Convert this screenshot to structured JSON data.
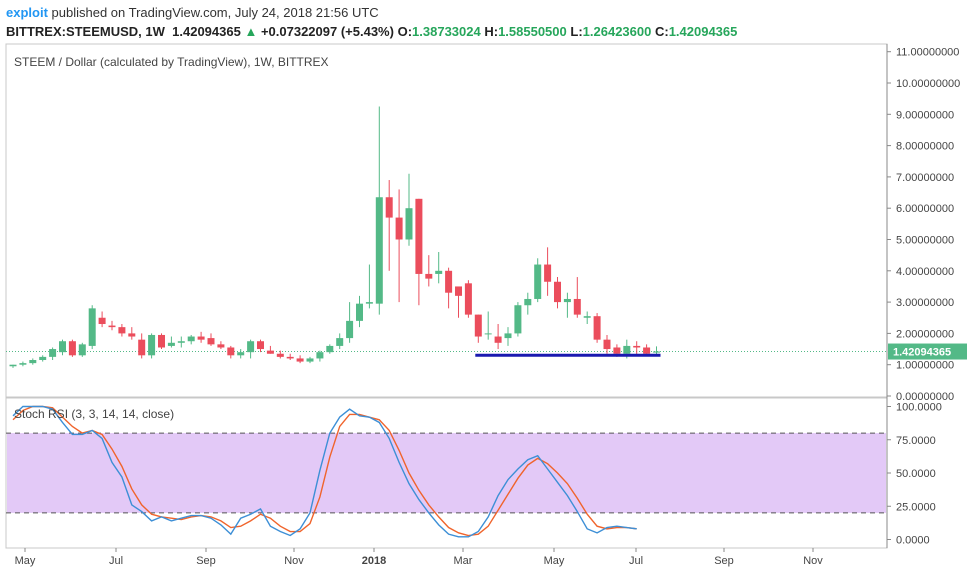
{
  "header": {
    "author": "exploit",
    "published_text": "published on TradingView.com, July 24, 2018 21:56 UTC",
    "symbol": "BITTREX:STEEMUSD, 1W",
    "last": "1.42094365",
    "change": "+0.07322097 (+5.43%)",
    "o_label": "O:",
    "o_value": "1.38733024",
    "h_label": "H:",
    "h_value": "1.58550500",
    "l_label": "L:",
    "l_value": "1.26423600",
    "c_label": "C:",
    "c_value": "1.42094365"
  },
  "colors": {
    "up": "#53b987",
    "down": "#eb4d5c",
    "k_line": "#3d8fd6",
    "d_line": "#f0642c",
    "band": "#e3c9f7",
    "support": "#1a1ab0",
    "price_tag": "#53b987"
  },
  "chart_data": [
    {
      "type": "candlestick",
      "title": "STEEM / Dollar (calculated by TradingView), 1W, BITTREX",
      "last_price_label": "1.42094365",
      "ylim": [
        0,
        11
      ],
      "y_ticks": [
        "11.00000000",
        "10.00000000",
        "9.00000000",
        "8.00000000",
        "7.00000000",
        "6.00000000",
        "5.00000000",
        "4.00000000",
        "3.00000000",
        "2.00000000",
        "1.00000000",
        "0.00000000"
      ],
      "x_ticks": [
        "May",
        "Jul",
        "Sep",
        "Nov",
        "2018",
        "Mar",
        "May",
        "Jul",
        "Sep",
        "Nov"
      ],
      "candles": [
        {
          "o": 0.95,
          "h": 1.0,
          "l": 0.9,
          "c": 1.0
        },
        {
          "o": 1.0,
          "h": 1.1,
          "l": 0.95,
          "c": 1.05
        },
        {
          "o": 1.05,
          "h": 1.2,
          "l": 1.0,
          "c": 1.15
        },
        {
          "o": 1.15,
          "h": 1.3,
          "l": 1.1,
          "c": 1.25
        },
        {
          "o": 1.25,
          "h": 1.55,
          "l": 1.15,
          "c": 1.5
        },
        {
          "o": 1.4,
          "h": 1.8,
          "l": 1.3,
          "c": 1.75
        },
        {
          "o": 1.75,
          "h": 1.8,
          "l": 1.25,
          "c": 1.3
        },
        {
          "o": 1.3,
          "h": 1.7,
          "l": 1.25,
          "c": 1.65
        },
        {
          "o": 1.6,
          "h": 2.9,
          "l": 1.5,
          "c": 2.8
        },
        {
          "o": 2.5,
          "h": 2.7,
          "l": 2.2,
          "c": 2.3
        },
        {
          "o": 2.25,
          "h": 2.4,
          "l": 2.1,
          "c": 2.2
        },
        {
          "o": 2.2,
          "h": 2.3,
          "l": 1.9,
          "c": 2.0
        },
        {
          "o": 2.0,
          "h": 2.2,
          "l": 1.8,
          "c": 1.9
        },
        {
          "o": 1.8,
          "h": 2.0,
          "l": 1.2,
          "c": 1.3
        },
        {
          "o": 1.3,
          "h": 2.0,
          "l": 1.2,
          "c": 1.95
        },
        {
          "o": 1.95,
          "h": 2.0,
          "l": 1.5,
          "c": 1.55
        },
        {
          "o": 1.6,
          "h": 1.9,
          "l": 1.55,
          "c": 1.7
        },
        {
          "o": 1.7,
          "h": 1.9,
          "l": 1.55,
          "c": 1.75
        },
        {
          "o": 1.75,
          "h": 1.95,
          "l": 1.65,
          "c": 1.9
        },
        {
          "o": 1.9,
          "h": 2.05,
          "l": 1.7,
          "c": 1.8
        },
        {
          "o": 1.85,
          "h": 2.0,
          "l": 1.6,
          "c": 1.65
        },
        {
          "o": 1.65,
          "h": 1.75,
          "l": 1.5,
          "c": 1.55
        },
        {
          "o": 1.55,
          "h": 1.6,
          "l": 1.2,
          "c": 1.3
        },
        {
          "o": 1.3,
          "h": 1.5,
          "l": 1.2,
          "c": 1.4
        },
        {
          "o": 1.4,
          "h": 1.8,
          "l": 1.2,
          "c": 1.75
        },
        {
          "o": 1.75,
          "h": 1.8,
          "l": 1.4,
          "c": 1.5
        },
        {
          "o": 1.45,
          "h": 1.6,
          "l": 1.35,
          "c": 1.35
        },
        {
          "o": 1.35,
          "h": 1.45,
          "l": 1.2,
          "c": 1.25
        },
        {
          "o": 1.25,
          "h": 1.35,
          "l": 1.15,
          "c": 1.2
        },
        {
          "o": 1.2,
          "h": 1.3,
          "l": 1.05,
          "c": 1.1
        },
        {
          "o": 1.1,
          "h": 1.25,
          "l": 1.05,
          "c": 1.2
        },
        {
          "o": 1.2,
          "h": 1.45,
          "l": 1.1,
          "c": 1.4
        },
        {
          "o": 1.4,
          "h": 1.65,
          "l": 1.35,
          "c": 1.6
        },
        {
          "o": 1.6,
          "h": 2.0,
          "l": 1.5,
          "c": 1.85
        },
        {
          "o": 1.85,
          "h": 3.0,
          "l": 1.7,
          "c": 2.4
        },
        {
          "o": 2.4,
          "h": 3.2,
          "l": 2.2,
          "c": 2.95
        },
        {
          "o": 2.95,
          "h": 4.2,
          "l": 2.8,
          "c": 3.0
        },
        {
          "o": 2.95,
          "h": 9.25,
          "l": 2.6,
          "c": 6.35
        },
        {
          "o": 6.35,
          "h": 6.9,
          "l": 4.0,
          "c": 5.7
        },
        {
          "o": 5.7,
          "h": 6.6,
          "l": 3.0,
          "c": 5.0
        },
        {
          "o": 5.0,
          "h": 7.1,
          "l": 4.8,
          "c": 6.0
        },
        {
          "o": 6.3,
          "h": 6.3,
          "l": 2.9,
          "c": 3.9
        },
        {
          "o": 3.9,
          "h": 4.5,
          "l": 3.5,
          "c": 3.75
        },
        {
          "o": 3.9,
          "h": 4.6,
          "l": 3.6,
          "c": 4.0
        },
        {
          "o": 4.0,
          "h": 4.1,
          "l": 2.8,
          "c": 3.3
        },
        {
          "o": 3.5,
          "h": 3.5,
          "l": 2.5,
          "c": 3.2
        },
        {
          "o": 3.6,
          "h": 3.7,
          "l": 2.5,
          "c": 2.6
        },
        {
          "o": 2.6,
          "h": 2.6,
          "l": 1.7,
          "c": 1.9
        },
        {
          "o": 2.0,
          "h": 2.7,
          "l": 1.8,
          "c": 2.0
        },
        {
          "o": 1.9,
          "h": 2.3,
          "l": 1.5,
          "c": 1.7
        },
        {
          "o": 1.85,
          "h": 2.2,
          "l": 1.6,
          "c": 2.0
        },
        {
          "o": 2.0,
          "h": 3.0,
          "l": 1.9,
          "c": 2.9
        },
        {
          "o": 2.9,
          "h": 3.3,
          "l": 2.6,
          "c": 3.1
        },
        {
          "o": 3.1,
          "h": 4.4,
          "l": 3.0,
          "c": 4.2
        },
        {
          "o": 4.2,
          "h": 4.75,
          "l": 3.2,
          "c": 3.65
        },
        {
          "o": 3.65,
          "h": 3.8,
          "l": 2.8,
          "c": 3.0
        },
        {
          "o": 3.0,
          "h": 3.3,
          "l": 2.5,
          "c": 3.1
        },
        {
          "o": 3.1,
          "h": 3.8,
          "l": 2.5,
          "c": 2.6
        },
        {
          "o": 2.5,
          "h": 2.7,
          "l": 2.3,
          "c": 2.55
        },
        {
          "o": 2.55,
          "h": 2.65,
          "l": 1.7,
          "c": 1.8
        },
        {
          "o": 1.8,
          "h": 1.95,
          "l": 1.35,
          "c": 1.5
        },
        {
          "o": 1.55,
          "h": 1.65,
          "l": 1.25,
          "c": 1.35
        },
        {
          "o": 1.35,
          "h": 1.8,
          "l": 1.2,
          "c": 1.6
        },
        {
          "o": 1.6,
          "h": 1.75,
          "l": 1.3,
          "c": 1.55
        },
        {
          "o": 1.55,
          "h": 1.65,
          "l": 1.3,
          "c": 1.35
        },
        {
          "o": 1.38733024,
          "h": 1.585505,
          "l": 1.264236,
          "c": 1.42094365
        }
      ],
      "support_line": {
        "y": 1.3,
        "from_index": 47,
        "to_index": 65
      }
    },
    {
      "type": "line",
      "title": "Stoch RSI (3, 3, 14, 14, close)",
      "ylim": [
        -8,
        102
      ],
      "y_ticks": [
        "100.0000",
        "75.0000",
        "50.0000",
        "25.0000",
        "0.0000"
      ],
      "band": [
        20,
        80
      ],
      "series": [
        {
          "values": [
            93,
            100,
            100,
            100,
            98,
            88,
            79,
            79,
            82,
            76,
            58,
            47,
            26,
            21,
            14,
            17,
            14,
            16,
            18,
            18,
            16,
            11,
            4,
            16,
            19,
            23,
            10,
            6,
            3,
            8,
            20,
            52,
            80,
            92,
            98,
            93,
            92,
            88,
            76,
            58,
            42,
            30,
            20,
            11,
            4,
            2,
            2,
            6,
            17,
            33,
            45,
            53,
            60,
            63,
            53,
            43,
            33,
            21,
            8,
            5,
            9,
            10,
            9,
            8
          ]
        },
        {
          "values": [
            90,
            97,
            100,
            100,
            99,
            92,
            85,
            80,
            82,
            79,
            68,
            55,
            38,
            26,
            19,
            17,
            16,
            15,
            17,
            18,
            17,
            14,
            9,
            10,
            14,
            19,
            16,
            10,
            6,
            6,
            12,
            32,
            62,
            85,
            94,
            94,
            92,
            90,
            82,
            67,
            50,
            37,
            26,
            17,
            9,
            5,
            3,
            4,
            10,
            22,
            34,
            46,
            56,
            61,
            57,
            50,
            42,
            31,
            19,
            10,
            8,
            9,
            9,
            8
          ]
        }
      ]
    }
  ]
}
